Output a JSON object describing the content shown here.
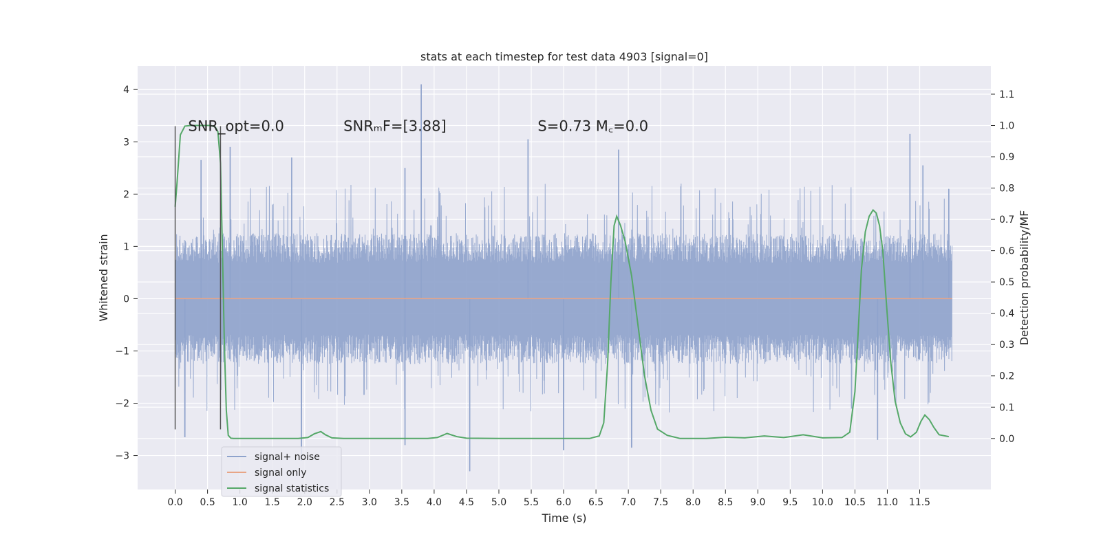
{
  "chart_data": {
    "type": "line",
    "title": "stats at each timestep for test data 4903 [signal=0]",
    "xlabel": "Time (s)",
    "ylabel": "Whitened strain",
    "y2label": "Detection probability/MF",
    "xlim": [
      -0.58,
      12.6
    ],
    "ylim": [
      -3.65,
      4.45
    ],
    "y2lim": [
      -0.163,
      1.19
    ],
    "xticks": [
      0.0,
      0.5,
      1.0,
      1.5,
      2.0,
      2.5,
      3.0,
      3.5,
      4.0,
      4.5,
      5.0,
      5.5,
      6.0,
      6.5,
      7.0,
      7.5,
      8.0,
      8.5,
      9.0,
      9.5,
      10.0,
      10.5,
      11.0,
      11.5
    ],
    "xtick_labels": [
      "0.0",
      "0.5",
      "1.0",
      "1.5",
      "2.0",
      "2.5",
      "3.0",
      "3.5",
      "4.0",
      "4.5",
      "5.0",
      "5.5",
      "6.0",
      "6.5",
      "7.0",
      "7.5",
      "8.0",
      "8.5",
      "9.0",
      "9.5",
      "10.0",
      "10.5",
      "11.0",
      "11.5"
    ],
    "yticks": [
      -3,
      -2,
      -1,
      0,
      1,
      2,
      3,
      4
    ],
    "ytick_labels": [
      "−3",
      "−2",
      "−1",
      "0",
      "1",
      "2",
      "3",
      "4"
    ],
    "y2ticks": [
      0.0,
      0.1,
      0.2,
      0.3,
      0.4,
      0.5,
      0.6,
      0.7,
      0.8,
      0.9,
      1.0,
      1.1
    ],
    "y2tick_labels": [
      "0.0",
      "0.1",
      "0.2",
      "0.3",
      "0.4",
      "0.5",
      "0.6",
      "0.7",
      "0.8",
      "0.9",
      "1.0",
      "1.1"
    ],
    "grid": true,
    "legend_position": "lower-left",
    "annotations": [
      {
        "text": "SNR_opt=0.0",
        "x": 0.2,
        "y": 3.3
      },
      {
        "text": "SNRₘF=[3.88]",
        "x": 2.6,
        "y": 3.3
      },
      {
        "text": "S=0.73   M꜀=0.0",
        "x": 5.6,
        "y": 3.3
      }
    ],
    "vertical_markers": [
      {
        "x": 0.0,
        "ymin": -2.5,
        "ymax": 3.3
      },
      {
        "x": 0.7,
        "ymin": -2.5,
        "ymax": 3.3
      }
    ],
    "series": [
      {
        "name": "signal+ noise",
        "color": "#8fa3cc",
        "kind": "noise",
        "x_range": [
          0.0,
          12.0
        ],
        "baseline_abs": 1.25,
        "peaks": [
          [
            0.4,
            2.65
          ],
          [
            0.85,
            2.9
          ],
          [
            1.8,
            2.7
          ],
          [
            3.55,
            2.5
          ],
          [
            3.8,
            4.1
          ],
          [
            5.45,
            3.05
          ],
          [
            6.85,
            2.85
          ],
          [
            11.35,
            3.15
          ],
          [
            11.55,
            2.55
          ],
          [
            11.95,
            2.1
          ],
          [
            0.15,
            -2.65
          ],
          [
            3.55,
            -2.8
          ],
          [
            4.55,
            -3.3
          ],
          [
            6.0,
            -2.9
          ],
          [
            7.05,
            -2.85
          ],
          [
            10.85,
            -2.7
          ],
          [
            1.95,
            -3.1
          ]
        ]
      },
      {
        "name": "signal only",
        "color": "#e8a586",
        "kind": "line",
        "x": [
          0.0,
          12.0
        ],
        "y": [
          0.0,
          0.0
        ]
      },
      {
        "name": "signal statistics",
        "color": "#55a868",
        "kind": "line",
        "axis": "right",
        "x": [
          0.0,
          0.03,
          0.08,
          0.15,
          0.25,
          0.35,
          0.45,
          0.55,
          0.62,
          0.66,
          0.7,
          0.73,
          0.76,
          0.79,
          0.82,
          0.86,
          0.9,
          1.0,
          1.5,
          1.9,
          2.05,
          2.15,
          2.25,
          2.32,
          2.42,
          2.6,
          3.0,
          3.5,
          3.9,
          4.05,
          4.2,
          4.35,
          4.5,
          5.0,
          5.5,
          6.0,
          6.4,
          6.55,
          6.62,
          6.68,
          6.73,
          6.78,
          6.82,
          6.88,
          6.95,
          7.05,
          7.15,
          7.25,
          7.35,
          7.45,
          7.6,
          7.8,
          8.2,
          8.5,
          8.8,
          9.1,
          9.4,
          9.7,
          10.0,
          10.3,
          10.42,
          10.5,
          10.55,
          10.6,
          10.66,
          10.72,
          10.78,
          10.83,
          10.88,
          10.93,
          10.98,
          11.05,
          11.12,
          11.2,
          11.28,
          11.36,
          11.45,
          11.52,
          11.58,
          11.65,
          11.72,
          11.8,
          11.95
        ],
        "y": [
          0.74,
          0.82,
          0.97,
          0.998,
          1.0,
          1.0,
          1.0,
          1.0,
          0.995,
          0.98,
          0.88,
          0.6,
          0.3,
          0.09,
          0.01,
          0.001,
          0.0,
          0.0,
          0.0,
          0.0,
          0.003,
          0.015,
          0.022,
          0.012,
          0.002,
          0.0,
          0.0,
          0.0,
          0.0,
          0.003,
          0.016,
          0.006,
          0.001,
          0.0,
          0.0,
          0.0,
          0.0,
          0.008,
          0.05,
          0.24,
          0.5,
          0.68,
          0.71,
          0.68,
          0.63,
          0.52,
          0.36,
          0.2,
          0.09,
          0.03,
          0.01,
          0.0,
          0.0,
          0.004,
          0.002,
          0.008,
          0.003,
          0.012,
          0.002,
          0.003,
          0.02,
          0.15,
          0.34,
          0.54,
          0.66,
          0.71,
          0.73,
          0.72,
          0.68,
          0.6,
          0.45,
          0.25,
          0.12,
          0.05,
          0.015,
          0.005,
          0.02,
          0.055,
          0.075,
          0.06,
          0.035,
          0.012,
          0.006
        ]
      }
    ]
  }
}
